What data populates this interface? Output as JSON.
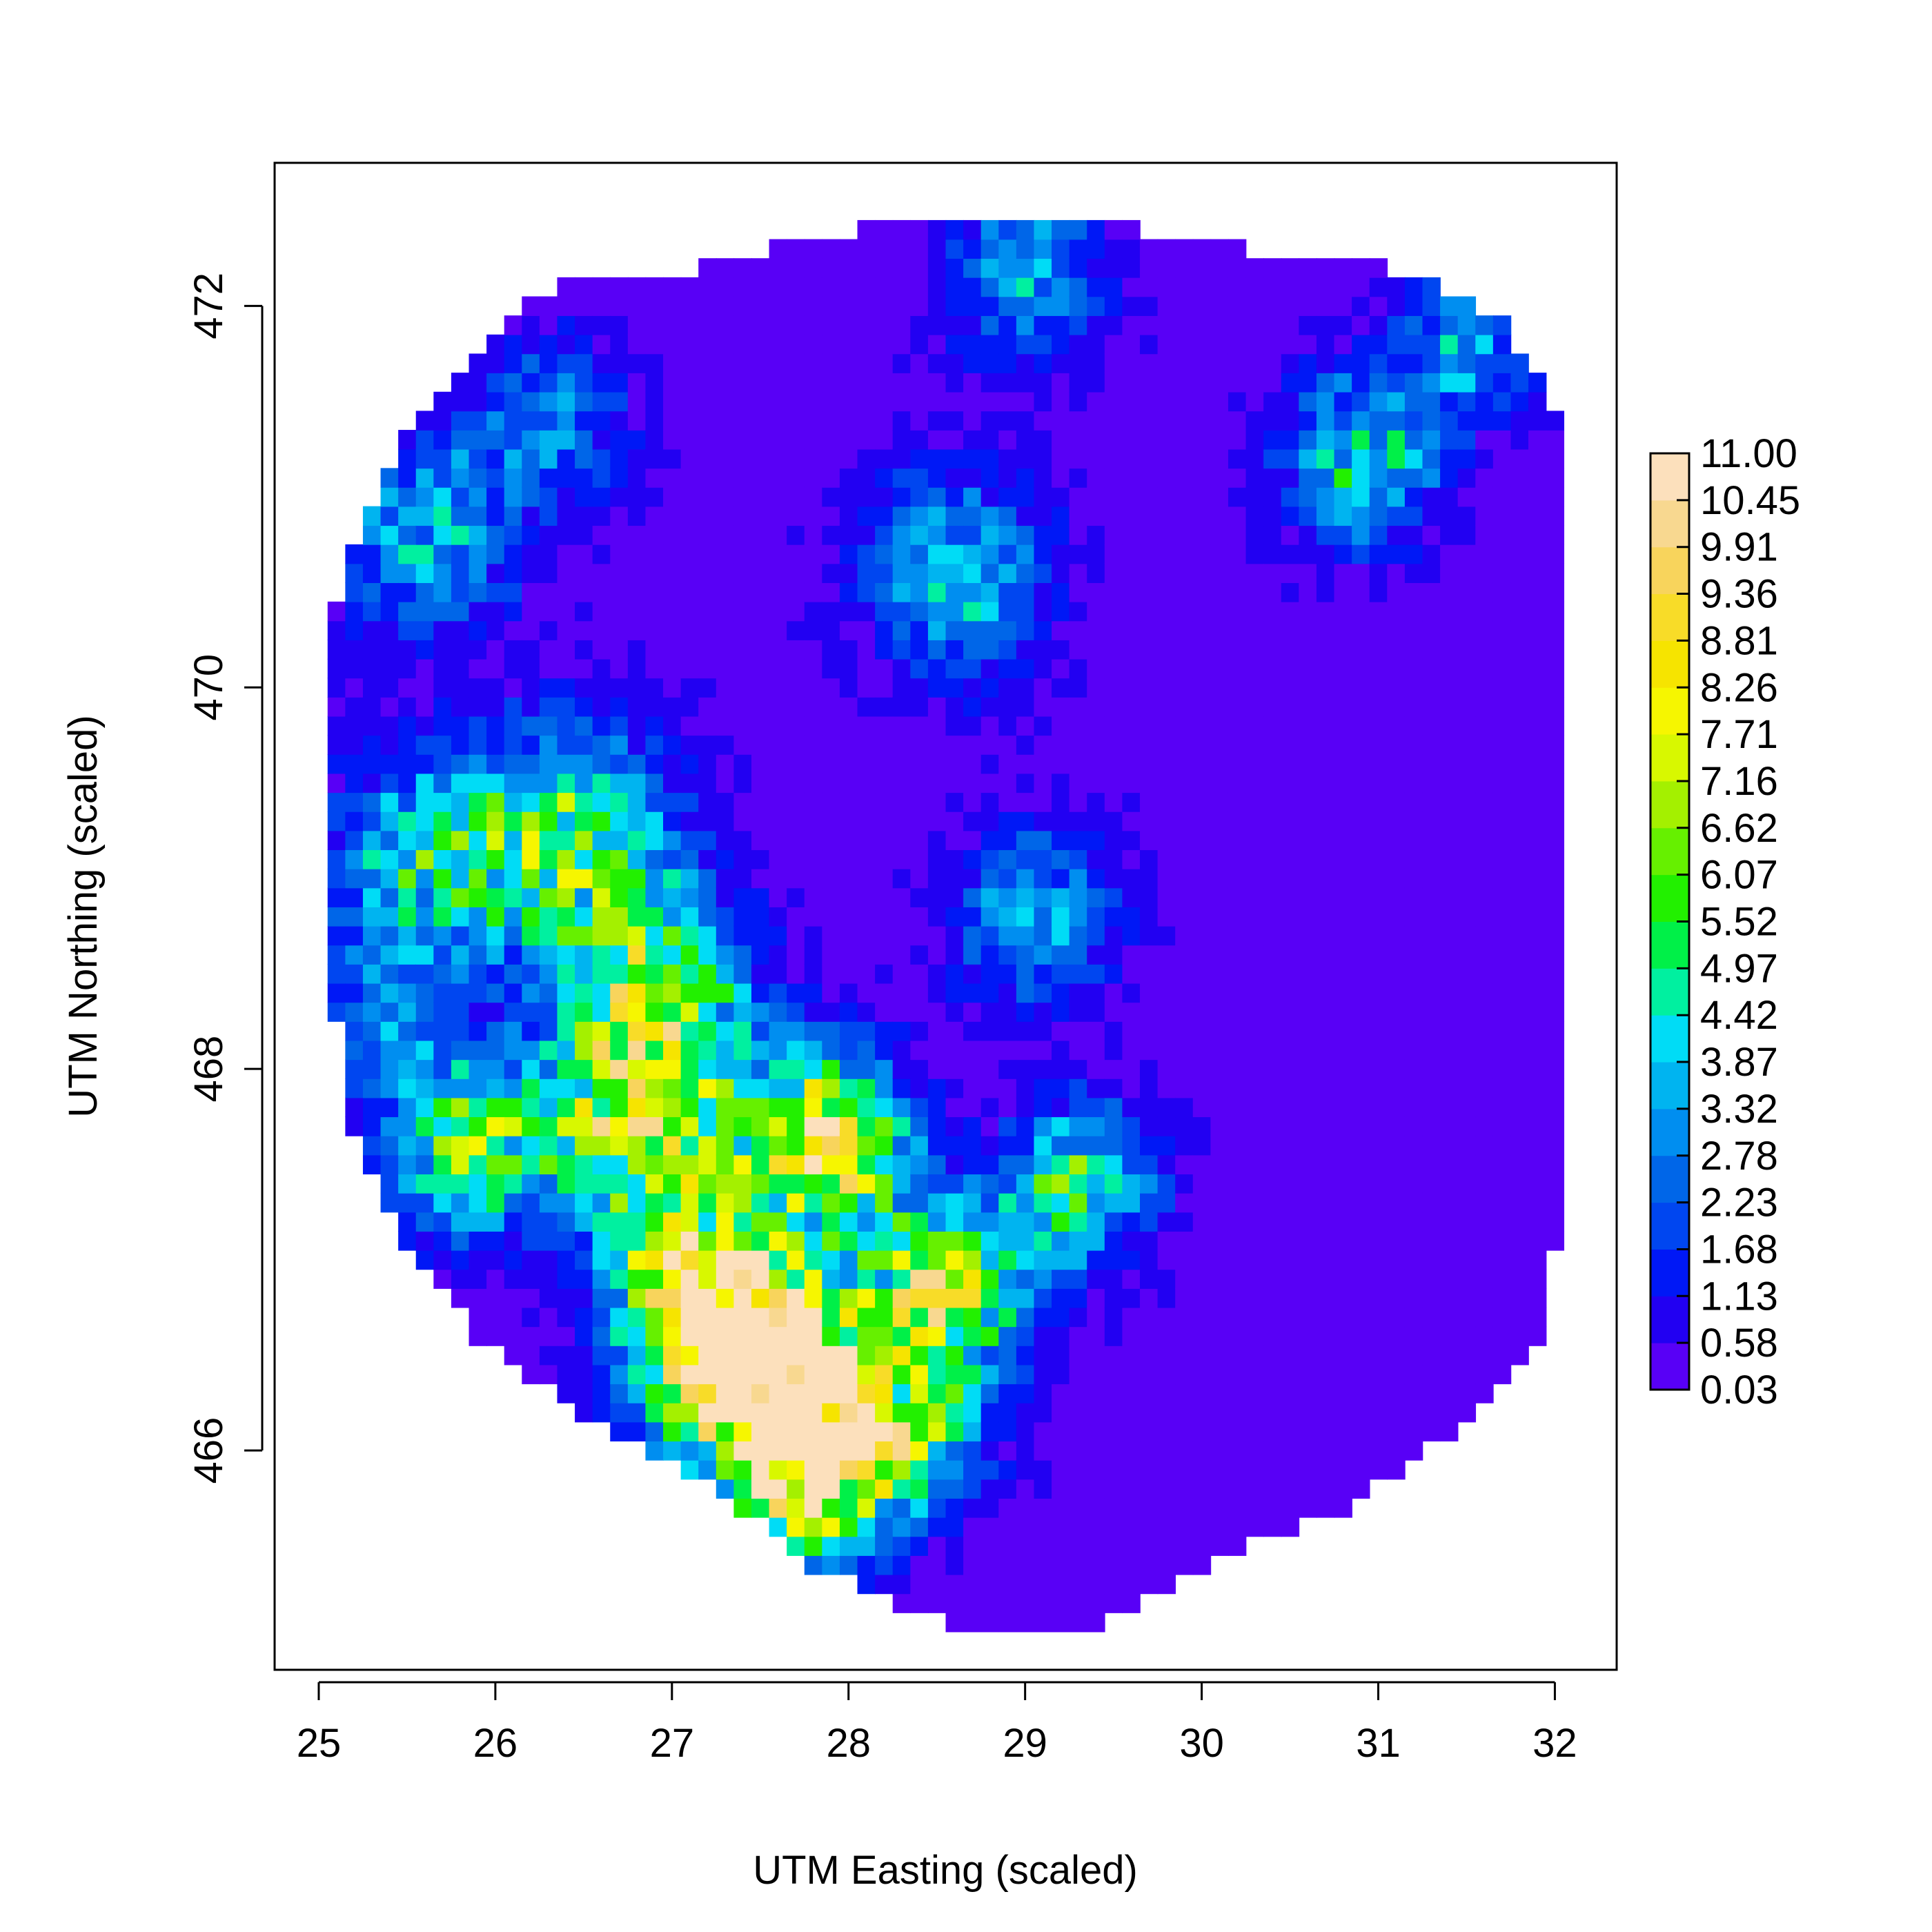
{
  "chart_data": {
    "type": "heatmap",
    "title": "",
    "xlabel": "UTM Easting (scaled)",
    "ylabel": "UTM Northing (scaled)",
    "xlim": [
      24.75,
      32.35
    ],
    "ylim": [
      464.85,
      472.75
    ],
    "x_ticks": [
      "25",
      "26",
      "27",
      "28",
      "29",
      "30",
      "31",
      "32"
    ],
    "y_ticks": [
      "466",
      "468",
      "470",
      "472"
    ],
    "grid": false,
    "legend": {
      "placement": "right",
      "levels": [
        "0.03",
        "0.58",
        "1.13",
        "1.68",
        "2.23",
        "2.78",
        "3.32",
        "3.87",
        "4.42",
        "4.97",
        "5.52",
        "6.07",
        "6.62",
        "7.16",
        "7.71",
        "8.26",
        "8.81",
        "9.36",
        "9.91",
        "10.45",
        "11.00"
      ],
      "colors": [
        "#5800f6",
        "#2200f2",
        "#0018f6",
        "#0046f0",
        "#0066e8",
        "#008ef0",
        "#00b4f0",
        "#00dcf6",
        "#00f0a0",
        "#00f048",
        "#22f000",
        "#66f000",
        "#a4f000",
        "#d8f800",
        "#f6f600",
        "#f6e400",
        "#f8dc28",
        "#f8d45c",
        "#f8d890",
        "#fce0bc"
      ]
    },
    "domain": {
      "boundary": [
        [
          25.05,
          469.55
        ],
        [
          25.1,
          470.5
        ],
        [
          25.3,
          471.0
        ],
        [
          25.55,
          471.4
        ],
        [
          25.8,
          471.7
        ],
        [
          26.1,
          472.0
        ],
        [
          26.5,
          472.15
        ],
        [
          27.1,
          472.2
        ],
        [
          27.8,
          472.35
        ],
        [
          28.5,
          472.5
        ],
        [
          29.3,
          472.45
        ],
        [
          30.3,
          472.3
        ],
        [
          31.1,
          472.2
        ],
        [
          31.7,
          471.95
        ],
        [
          32.0,
          471.5
        ],
        [
          32.1,
          470.6
        ],
        [
          32.07,
          469.0
        ],
        [
          32.05,
          467.4
        ],
        [
          31.95,
          466.6
        ],
        [
          31.5,
          466.15
        ],
        [
          30.8,
          465.7
        ],
        [
          30.0,
          465.4
        ],
        [
          29.4,
          465.08
        ],
        [
          28.6,
          465.08
        ],
        [
          27.8,
          465.4
        ],
        [
          27.2,
          465.85
        ],
        [
          26.5,
          466.2
        ],
        [
          25.9,
          466.6
        ],
        [
          25.5,
          467.1
        ],
        [
          25.2,
          467.7
        ],
        [
          25.05,
          468.6
        ]
      ],
      "cell_size": 0.1
    },
    "hotspots": [
      {
        "x": 27.65,
        "y": 466.5,
        "value": 10.5,
        "spread": 0.3
      },
      {
        "x": 27.75,
        "y": 465.85,
        "value": 10.0,
        "spread": 0.28
      },
      {
        "x": 27.85,
        "y": 467.6,
        "value": 9.5,
        "spread": 0.32
      },
      {
        "x": 27.35,
        "y": 466.4,
        "value": 9.0,
        "spread": 0.35
      },
      {
        "x": 26.8,
        "y": 467.7,
        "value": 8.5,
        "spread": 0.35
      },
      {
        "x": 28.55,
        "y": 466.85,
        "value": 8.5,
        "spread": 0.3
      },
      {
        "x": 26.9,
        "y": 468.4,
        "value": 7.0,
        "spread": 0.35
      },
      {
        "x": 25.85,
        "y": 467.6,
        "value": 6.5,
        "spread": 0.3
      },
      {
        "x": 26.4,
        "y": 469.2,
        "value": 6.0,
        "spread": 0.4
      },
      {
        "x": 25.6,
        "y": 469.1,
        "value": 4.5,
        "spread": 0.35
      },
      {
        "x": 29.3,
        "y": 467.4,
        "value": 5.5,
        "spread": 0.28
      },
      {
        "x": 28.3,
        "y": 466.1,
        "value": 6.5,
        "spread": 0.3
      },
      {
        "x": 25.6,
        "y": 470.8,
        "value": 3.8,
        "spread": 0.35
      },
      {
        "x": 28.6,
        "y": 470.6,
        "value": 4.0,
        "spread": 0.35
      },
      {
        "x": 29.0,
        "y": 472.2,
        "value": 3.6,
        "spread": 0.3
      },
      {
        "x": 30.9,
        "y": 471.2,
        "value": 4.8,
        "spread": 0.3
      },
      {
        "x": 31.5,
        "y": 471.8,
        "value": 3.8,
        "spread": 0.25
      },
      {
        "x": 29.05,
        "y": 468.8,
        "value": 3.8,
        "spread": 0.3
      },
      {
        "x": 26.3,
        "y": 471.4,
        "value": 3.0,
        "spread": 0.3
      },
      {
        "x": 27.1,
        "y": 466.9,
        "value": 7.5,
        "spread": 0.3
      },
      {
        "x": 25.4,
        "y": 468.3,
        "value": 3.0,
        "spread": 0.3
      }
    ],
    "base_value": 0.5
  }
}
